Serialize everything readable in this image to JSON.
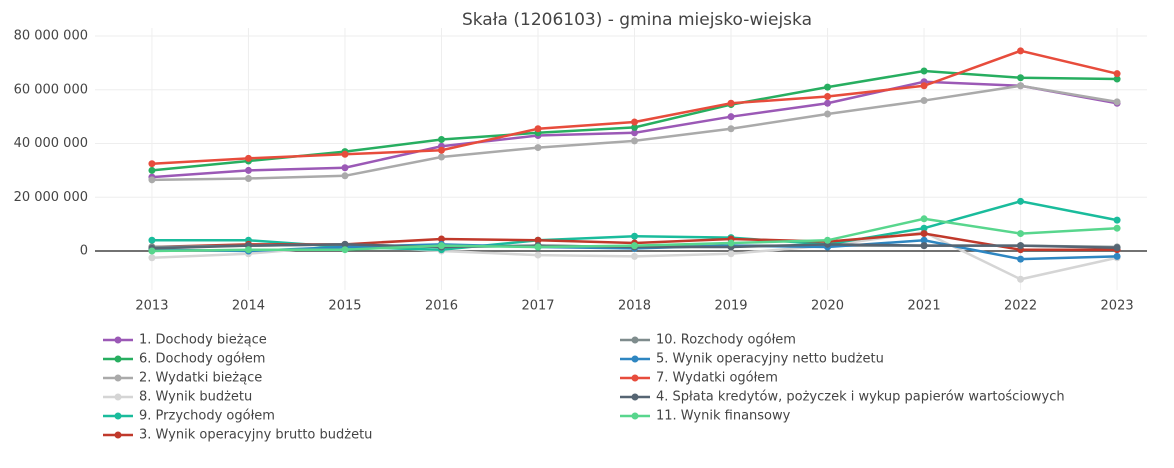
{
  "chart_data": {
    "type": "line",
    "title": "Skała (1206103) - gmina miejsko-wiejska",
    "x": [
      2013,
      2014,
      2015,
      2016,
      2017,
      2018,
      2019,
      2020,
      2021,
      2022,
      2023
    ],
    "xlim": [
      2012.41,
      2023.31
    ],
    "xticks": [
      2013,
      2014,
      2015,
      2016,
      2017,
      2018,
      2019,
      2020,
      2021,
      2022,
      2023
    ],
    "ylim": [
      -14500000,
      83000000
    ],
    "yticks": [
      0,
      {
        "value": 20000000,
        "label": "20 000 000"
      },
      {
        "value": 40000000,
        "label": "40 000 000"
      },
      {
        "value": 60000000,
        "label": "60 000 000"
      },
      {
        "value": 80000000,
        "label": "80 000 000"
      }
    ],
    "grid": true,
    "series": [
      {
        "name": "1. Dochody bieżące",
        "color": "#9b59b6",
        "values": [
          27500000,
          30000000,
          31000000,
          39000000,
          43000000,
          44000000,
          50000000,
          55000000,
          63000000,
          61500000,
          55000000
        ]
      },
      {
        "name": "6. Dochody ogółem",
        "color": "#27ae60",
        "values": [
          30000000,
          33500000,
          37000000,
          41500000,
          44000000,
          46000000,
          54500000,
          61000000,
          67000000,
          64500000,
          64000000
        ]
      },
      {
        "name": "2. Wydatki bieżące",
        "color": "#aaaaaa",
        "values": [
          26500000,
          27000000,
          28000000,
          35000000,
          38500000,
          41000000,
          45500000,
          51000000,
          56000000,
          61500000,
          55500000
        ]
      },
      {
        "name": "8. Wynik budżetu",
        "color": "#d5d5d5",
        "values": [
          -2500000,
          -1000000,
          2000000,
          0,
          -1500000,
          -2000000,
          -1000000,
          2000000,
          7000000,
          -10500000,
          -2500000
        ]
      },
      {
        "name": "9. Przychody ogółem",
        "color": "#1abc9c",
        "values": [
          4000000,
          4000000,
          1500000,
          500000,
          4000000,
          5500000,
          5000000,
          2500000,
          8500000,
          18500000,
          11500000
        ]
      },
      {
        "name": "3. Wynik operacyjny brutto budżetu",
        "color": "#c0392b",
        "values": [
          1500000,
          2500000,
          2500000,
          4500000,
          4000000,
          3000000,
          4500000,
          3500000,
          6500000,
          500000,
          500000
        ]
      },
      {
        "name": "10. Rozchody ogółem",
        "color": "#7f8c8d",
        "values": [
          1500000,
          2000000,
          2500000,
          1500000,
          2000000,
          1500000,
          2000000,
          2000000,
          2000000,
          2000000,
          1500000
        ]
      },
      {
        "name": "5. Wynik operacyjny netto budżetu",
        "color": "#2e86c1",
        "values": [
          500000,
          0,
          1500000,
          2500000,
          1500000,
          1000000,
          2000000,
          1500000,
          4000000,
          -3000000,
          -2000000
        ]
      },
      {
        "name": "7. Wydatki ogółem",
        "color": "#e74c3c",
        "values": [
          32500000,
          34500000,
          36000000,
          37500000,
          45500000,
          48000000,
          55000000,
          57500000,
          61500000,
          74500000,
          66000000
        ]
      },
      {
        "name": "4. Spłata kredytów, pożyczek i wykup papierów wartościowych",
        "color": "#566573",
        "values": [
          1000000,
          2000000,
          2500000,
          1500000,
          2000000,
          1500000,
          1500000,
          2500000,
          2000000,
          2000000,
          1200000
        ]
      },
      {
        "name": "11. Wynik finansowy",
        "color": "#58d68d",
        "values": [
          0,
          500000,
          500000,
          2000000,
          1500000,
          2000000,
          3000000,
          4000000,
          12000000,
          6500000,
          8500000
        ]
      }
    ]
  }
}
